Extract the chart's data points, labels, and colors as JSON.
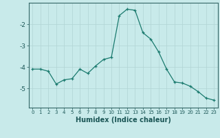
{
  "xlabel": "Humidex (Indice chaleur)",
  "x": [
    0,
    1,
    2,
    3,
    4,
    5,
    6,
    7,
    8,
    9,
    10,
    11,
    12,
    13,
    14,
    15,
    16,
    17,
    18,
    19,
    20,
    21,
    22,
    23
  ],
  "y": [
    -4.1,
    -4.1,
    -4.2,
    -4.8,
    -4.6,
    -4.55,
    -4.1,
    -4.3,
    -3.95,
    -3.65,
    -3.55,
    -1.6,
    -1.3,
    -1.35,
    -2.4,
    -2.7,
    -3.3,
    -4.1,
    -4.7,
    -4.75,
    -4.9,
    -5.15,
    -5.45,
    -5.55
  ],
  "line_color": "#1a7a6e",
  "marker": "+",
  "marker_size": 3,
  "background_color": "#c8eaea",
  "grid_color": "#b0d4d4",
  "axis_color": "#336666",
  "ylim": [
    -5.9,
    -1.0
  ],
  "yticks": [
    -5,
    -4,
    -3,
    -2
  ],
  "xlim": [
    -0.5,
    23.5
  ],
  "xticks": [
    0,
    1,
    2,
    3,
    4,
    5,
    6,
    7,
    8,
    9,
    10,
    11,
    12,
    13,
    14,
    15,
    16,
    17,
    18,
    19,
    20,
    21,
    22,
    23
  ]
}
